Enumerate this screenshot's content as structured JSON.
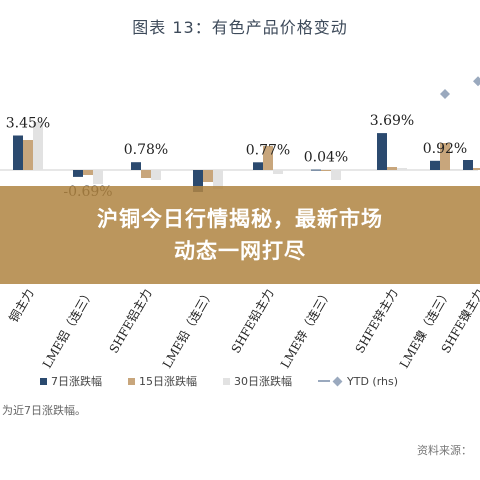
{
  "title": "图表 13：有色产品价格变动",
  "banner": {
    "line1": "沪铜今日行情揭秘，最新市场",
    "line2": "动态一网打尽"
  },
  "legend": {
    "s7": "7日涨跌幅",
    "s15": "15日涨跌幅",
    "s30": "30日涨跌幅",
    "ytd": "YTD (rhs)"
  },
  "footnote": "为近7日涨跌幅。",
  "source": "资料来源：",
  "colors": {
    "s7": "#2b4a6f",
    "s15": "#c8a67c",
    "s30": "#e2e2e2",
    "ytd": "#9aa9be"
  },
  "chart_data": {
    "type": "bar",
    "categories": [
      "铜主力",
      "LME铝（连三）",
      "SHFE铝主力",
      "LME铅（连三）",
      "SHFE铅主力",
      "LME锌（连三）",
      "SHFE锌主力",
      "LME镍（连三）",
      "SHFE镍主力"
    ],
    "series": [
      {
        "name": "7日涨跌幅",
        "values": [
          3.45,
          -0.69,
          0.78,
          -2.2,
          0.77,
          0.04,
          3.69,
          0.92,
          1.0
        ]
      },
      {
        "name": "15日涨跌幅",
        "values": [
          3.0,
          -0.5,
          -0.8,
          -1.2,
          2.4,
          -0.1,
          0.3,
          2.7,
          0.2
        ]
      },
      {
        "name": "30日涨跌幅",
        "values": [
          4.8,
          -1.4,
          -1.0,
          -1.9,
          -0.4,
          -1.0,
          0.2,
          0.1,
          0.4
        ]
      },
      {
        "name": "YTD (rhs)",
        "values": [
          null,
          null,
          null,
          null,
          null,
          null,
          null,
          2.0,
          3.6
        ]
      }
    ],
    "value_labels": [
      "3.45%",
      "-0.69%",
      "0.78%",
      null,
      "0.77%",
      "0.04%",
      "3.69%",
      "0.92%",
      null
    ],
    "ylim": [
      -3,
      6
    ]
  }
}
